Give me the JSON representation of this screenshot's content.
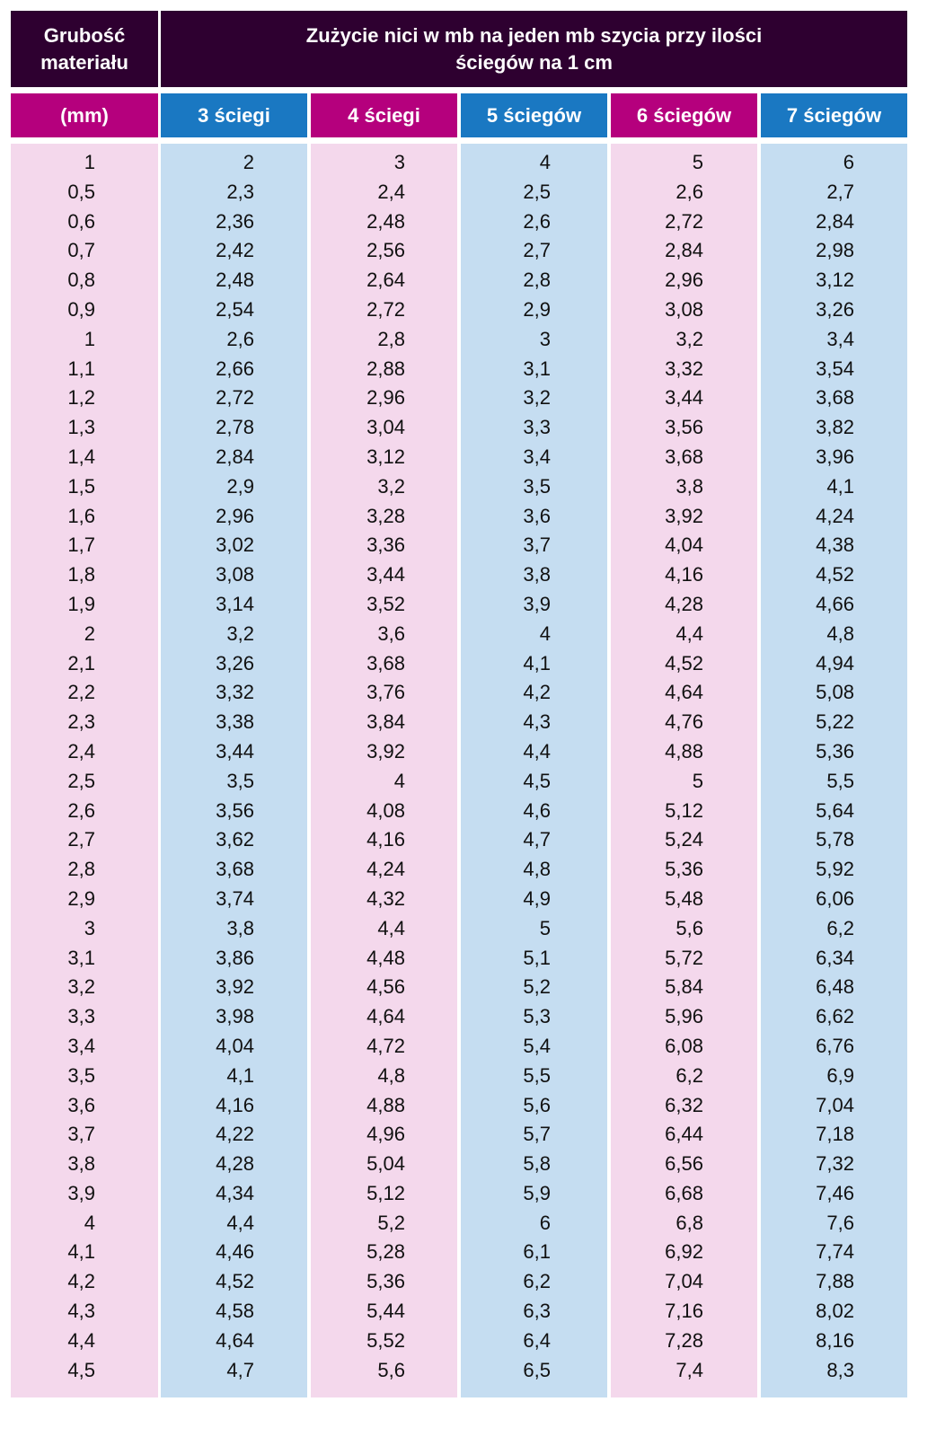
{
  "header": {
    "thickness_title": "Grubość materiału",
    "consumption_title": "Zużycie nici w mb na jeden mb szycia przy ilości ściegów na 1 cm",
    "unit": "(mm)",
    "columns": [
      "3 ściegi",
      "4 ściegi",
      "5 ściegów",
      "6 ściegów",
      "7 ściegów"
    ]
  },
  "colors": {
    "dark_header": "#2e0030",
    "magenta": "#b5007d",
    "blue": "#1a78c2",
    "light_pink": "#f4d8ec",
    "light_blue": "#c5ddf1"
  },
  "rows": [
    [
      "1",
      "2",
      "3",
      "4",
      "5",
      "6"
    ],
    [
      "0,5",
      "2,3",
      "2,4",
      "2,5",
      "2,6",
      "2,7"
    ],
    [
      "0,6",
      "2,36",
      "2,48",
      "2,6",
      "2,72",
      "2,84"
    ],
    [
      "0,7",
      "2,42",
      "2,56",
      "2,7",
      "2,84",
      "2,98"
    ],
    [
      "0,8",
      "2,48",
      "2,64",
      "2,8",
      "2,96",
      "3,12"
    ],
    [
      "0,9",
      "2,54",
      "2,72",
      "2,9",
      "3,08",
      "3,26"
    ],
    [
      "1",
      "2,6",
      "2,8",
      "3",
      "3,2",
      "3,4"
    ],
    [
      "1,1",
      "2,66",
      "2,88",
      "3,1",
      "3,32",
      "3,54"
    ],
    [
      "1,2",
      "2,72",
      "2,96",
      "3,2",
      "3,44",
      "3,68"
    ],
    [
      "1,3",
      "2,78",
      "3,04",
      "3,3",
      "3,56",
      "3,82"
    ],
    [
      "1,4",
      "2,84",
      "3,12",
      "3,4",
      "3,68",
      "3,96"
    ],
    [
      "1,5",
      "2,9",
      "3,2",
      "3,5",
      "3,8",
      "4,1"
    ],
    [
      "1,6",
      "2,96",
      "3,28",
      "3,6",
      "3,92",
      "4,24"
    ],
    [
      "1,7",
      "3,02",
      "3,36",
      "3,7",
      "4,04",
      "4,38"
    ],
    [
      "1,8",
      "3,08",
      "3,44",
      "3,8",
      "4,16",
      "4,52"
    ],
    [
      "1,9",
      "3,14",
      "3,52",
      "3,9",
      "4,28",
      "4,66"
    ],
    [
      "2",
      "3,2",
      "3,6",
      "4",
      "4,4",
      "4,8"
    ],
    [
      "2,1",
      "3,26",
      "3,68",
      "4,1",
      "4,52",
      "4,94"
    ],
    [
      "2,2",
      "3,32",
      "3,76",
      "4,2",
      "4,64",
      "5,08"
    ],
    [
      "2,3",
      "3,38",
      "3,84",
      "4,3",
      "4,76",
      "5,22"
    ],
    [
      "2,4",
      "3,44",
      "3,92",
      "4,4",
      "4,88",
      "5,36"
    ],
    [
      "2,5",
      "3,5",
      "4",
      "4,5",
      "5",
      "5,5"
    ],
    [
      "2,6",
      "3,56",
      "4,08",
      "4,6",
      "5,12",
      "5,64"
    ],
    [
      "2,7",
      "3,62",
      "4,16",
      "4,7",
      "5,24",
      "5,78"
    ],
    [
      "2,8",
      "3,68",
      "4,24",
      "4,8",
      "5,36",
      "5,92"
    ],
    [
      "2,9",
      "3,74",
      "4,32",
      "4,9",
      "5,48",
      "6,06"
    ],
    [
      "3",
      "3,8",
      "4,4",
      "5",
      "5,6",
      "6,2"
    ],
    [
      "3,1",
      "3,86",
      "4,48",
      "5,1",
      "5,72",
      "6,34"
    ],
    [
      "3,2",
      "3,92",
      "4,56",
      "5,2",
      "5,84",
      "6,48"
    ],
    [
      "3,3",
      "3,98",
      "4,64",
      "5,3",
      "5,96",
      "6,62"
    ],
    [
      "3,4",
      "4,04",
      "4,72",
      "5,4",
      "6,08",
      "6,76"
    ],
    [
      "3,5",
      "4,1",
      "4,8",
      "5,5",
      "6,2",
      "6,9"
    ],
    [
      "3,6",
      "4,16",
      "4,88",
      "5,6",
      "6,32",
      "7,04"
    ],
    [
      "3,7",
      "4,22",
      "4,96",
      "5,7",
      "6,44",
      "7,18"
    ],
    [
      "3,8",
      "4,28",
      "5,04",
      "5,8",
      "6,56",
      "7,32"
    ],
    [
      "3,9",
      "4,34",
      "5,12",
      "5,9",
      "6,68",
      "7,46"
    ],
    [
      "4",
      "4,4",
      "5,2",
      "6",
      "6,8",
      "7,6"
    ],
    [
      "4,1",
      "4,46",
      "5,28",
      "6,1",
      "6,92",
      "7,74"
    ],
    [
      "4,2",
      "4,52",
      "5,36",
      "6,2",
      "7,04",
      "7,88"
    ],
    [
      "4,3",
      "4,58",
      "5,44",
      "6,3",
      "7,16",
      "8,02"
    ],
    [
      "4,4",
      "4,64",
      "5,52",
      "6,4",
      "7,28",
      "8,16"
    ],
    [
      "4,5",
      "4,7",
      "5,6",
      "6,5",
      "7,4",
      "8,3"
    ]
  ]
}
